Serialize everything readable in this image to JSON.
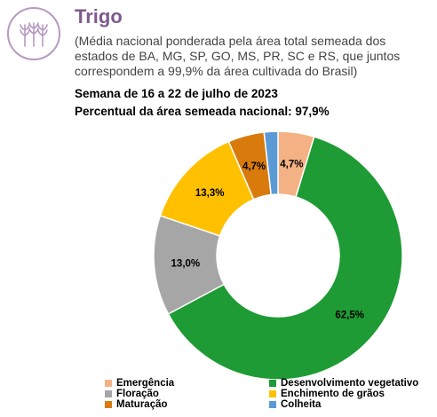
{
  "header": {
    "title": "Trigo",
    "subtitle": "(Média nacional ponderada pela área total semeada dos estados de BA, MG, SP, GO, MS, PR, SC e RS, que juntos correspondem a 99,9% da área cultivada do Brasil)",
    "week": "Semana de 16 a 22 de julho de 2023",
    "percent_area": "Percentual da área semeada nacional: 97,9%",
    "icon": "wheat-icon"
  },
  "chart_data": {
    "type": "pie",
    "donut": true,
    "title": "",
    "legend_position": "bottom",
    "categories": [
      "Emergência",
      "Desenvolvimento vegetativo",
      "Floração",
      "Enchimento de grãos",
      "Maturação",
      "Colheita"
    ],
    "values": [
      4.7,
      62.5,
      13.0,
      13.3,
      4.7,
      1.8
    ],
    "data_labels": [
      "4,7%",
      "62,5%",
      "13,0%",
      "13,3%",
      "4,7%",
      ""
    ],
    "colors": [
      "#f4b183",
      "#1e9b34",
      "#a6a6a6",
      "#ffc000",
      "#d87a0c",
      "#5b9bd5"
    ]
  }
}
